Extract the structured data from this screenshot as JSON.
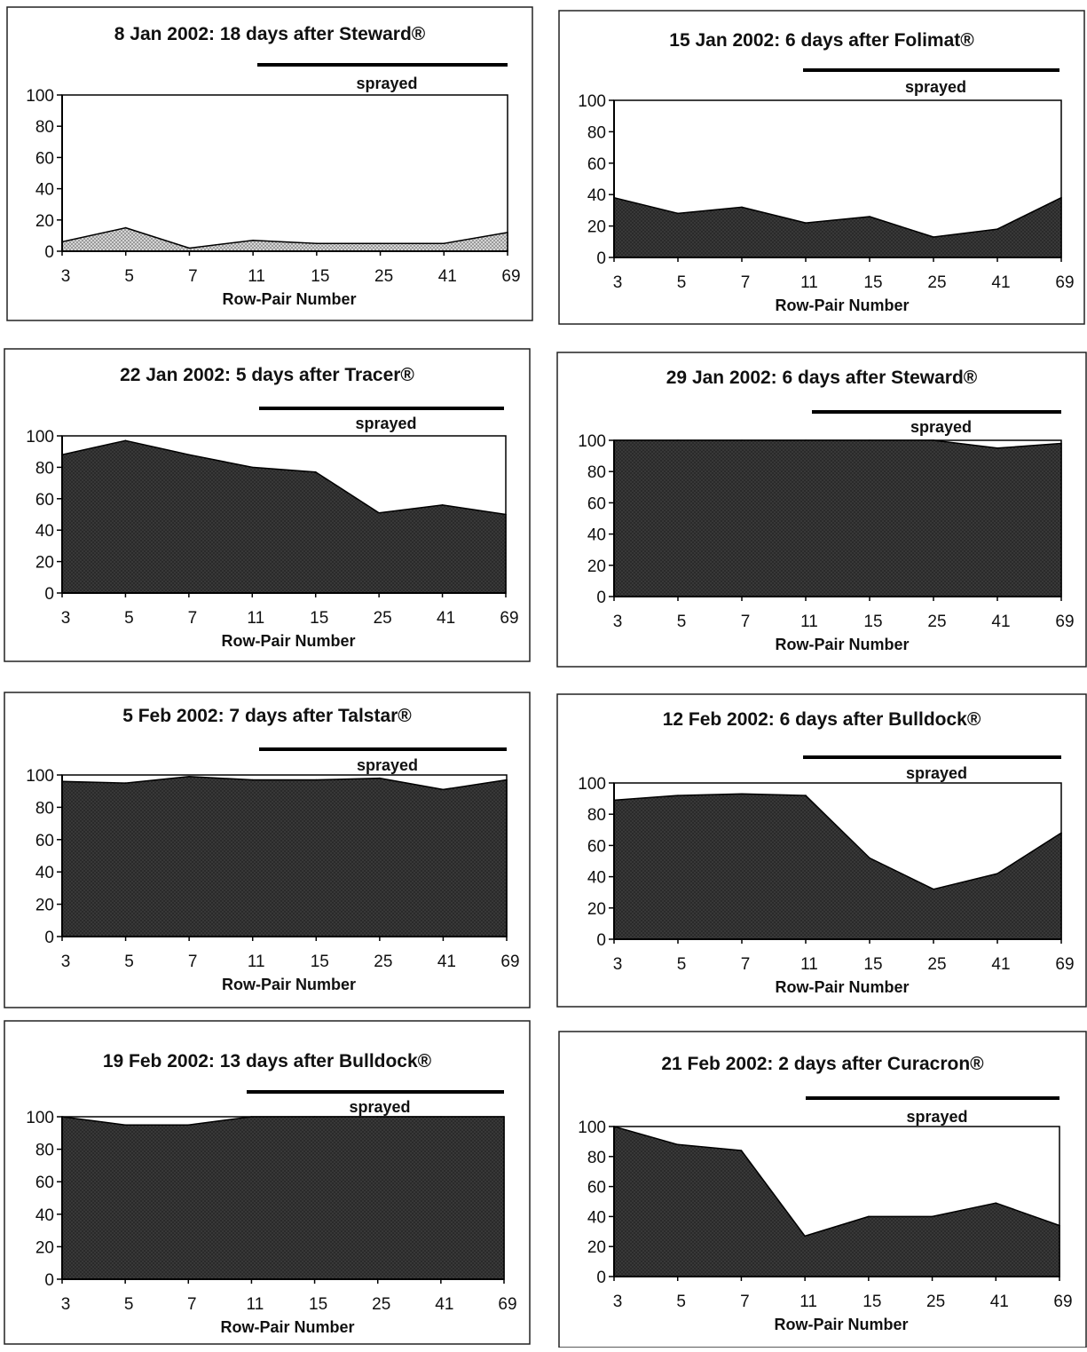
{
  "chart_data": [
    {
      "type": "area",
      "title": "8 Jan 2002: 18 days after Steward®",
      "annotation": "sprayed",
      "xlabel": "Row-Pair Number",
      "ylabel": "",
      "categories": [
        "3",
        "5",
        "7",
        "11",
        "15",
        "25",
        "41",
        "69"
      ],
      "yticks": [
        0,
        20,
        40,
        60,
        80,
        100
      ],
      "ylim": [
        0,
        100
      ],
      "values": [
        6,
        15,
        2,
        7,
        5,
        5,
        5,
        12
      ],
      "sprayed_range": [
        "11",
        "69"
      ]
    },
    {
      "type": "area",
      "title": "15 Jan 2002: 6 days after Folimat®",
      "annotation": "sprayed",
      "xlabel": "Row-Pair Number",
      "ylabel": "",
      "categories": [
        "3",
        "5",
        "7",
        "11",
        "15",
        "25",
        "41",
        "69"
      ],
      "yticks": [
        0,
        20,
        40,
        60,
        80,
        100
      ],
      "ylim": [
        0,
        100
      ],
      "values": [
        38,
        28,
        32,
        22,
        26,
        13,
        18,
        38
      ],
      "sprayed_range": [
        "11",
        "69"
      ]
    },
    {
      "type": "area",
      "title": "22 Jan 2002: 5 days after Tracer®",
      "annotation": "sprayed",
      "xlabel": "Row-Pair Number",
      "ylabel": "",
      "categories": [
        "3",
        "5",
        "7",
        "11",
        "15",
        "25",
        "41",
        "69"
      ],
      "yticks": [
        0,
        20,
        40,
        60,
        80,
        100
      ],
      "ylim": [
        0,
        100
      ],
      "values": [
        88,
        97,
        88,
        80,
        77,
        51,
        56,
        50
      ],
      "sprayed_range": [
        "11",
        "69"
      ]
    },
    {
      "type": "area",
      "title": "29 Jan 2002: 6 days after Steward®",
      "annotation": "sprayed",
      "xlabel": "Row-Pair Number",
      "ylabel": "",
      "categories": [
        "3",
        "5",
        "7",
        "11",
        "15",
        "25",
        "41",
        "69"
      ],
      "yticks": [
        0,
        20,
        40,
        60,
        80,
        100
      ],
      "ylim": [
        0,
        100
      ],
      "values": [
        100,
        100,
        100,
        100,
        100,
        100,
        95,
        98
      ],
      "sprayed_range": [
        "11",
        "69"
      ]
    },
    {
      "type": "area",
      "title": "5 Feb 2002: 7 days after Talstar®",
      "annotation": "sprayed",
      "xlabel": "Row-Pair Number",
      "ylabel": "",
      "categories": [
        "3",
        "5",
        "7",
        "11",
        "15",
        "25",
        "41",
        "69"
      ],
      "yticks": [
        0,
        20,
        40,
        60,
        80,
        100
      ],
      "ylim": [
        0,
        100
      ],
      "values": [
        96,
        95,
        99,
        97,
        97,
        98,
        91,
        97
      ],
      "sprayed_range": [
        "11",
        "69"
      ]
    },
    {
      "type": "area",
      "title": "12 Feb 2002: 6 days after Bulldock®",
      "annotation": "sprayed",
      "xlabel": "Row-Pair Number",
      "ylabel": "",
      "categories": [
        "3",
        "5",
        "7",
        "11",
        "15",
        "25",
        "41",
        "69"
      ],
      "yticks": [
        0,
        20,
        40,
        60,
        80,
        100
      ],
      "ylim": [
        0,
        100
      ],
      "values": [
        89,
        92,
        93,
        92,
        52,
        32,
        42,
        68
      ],
      "sprayed_range": [
        "11",
        "69"
      ]
    },
    {
      "type": "area",
      "title": "19 Feb 2002: 13 days after Bulldock®",
      "annotation": "sprayed",
      "xlabel": "Row-Pair Number",
      "ylabel": "",
      "categories": [
        "3",
        "5",
        "7",
        "11",
        "15",
        "25",
        "41",
        "69"
      ],
      "yticks": [
        0,
        20,
        40,
        60,
        80,
        100
      ],
      "ylim": [
        0,
        100
      ],
      "values": [
        100,
        95,
        95,
        100,
        100,
        100,
        100,
        100
      ],
      "sprayed_range": [
        "11",
        "69"
      ]
    },
    {
      "type": "area",
      "title": "21 Feb 2002: 2 days after Curacron®",
      "annotation": "sprayed",
      "xlabel": "Row-Pair Number",
      "ylabel": "",
      "categories": [
        "3",
        "5",
        "7",
        "11",
        "15",
        "25",
        "41",
        "69"
      ],
      "yticks": [
        0,
        20,
        40,
        60,
        80,
        100
      ],
      "ylim": [
        0,
        100
      ],
      "values": [
        100,
        88,
        84,
        27,
        40,
        40,
        49,
        34
      ],
      "sprayed_range": [
        "11",
        "69"
      ]
    }
  ]
}
